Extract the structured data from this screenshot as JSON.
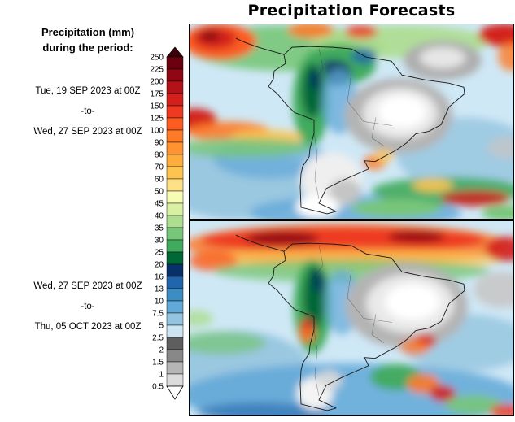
{
  "title": "Precipitation Forecasts",
  "sidebar": {
    "legend_title_line1": "Precipitation (mm)",
    "legend_title_line2": "during the period:",
    "period1": {
      "from": "Tue, 19 SEP 2023 at 00Z",
      "separator": "-to-",
      "to": "Wed, 27 SEP 2023 at 00Z"
    },
    "period2": {
      "from": "Wed, 27 SEP 2023 at 00Z",
      "separator": "-to-",
      "to": "Thu, 05 OCT 2023 at 00Z"
    }
  },
  "colorbar": {
    "boundaries": [
      "250",
      "225",
      "200",
      "175",
      "150",
      "125",
      "100",
      "90",
      "80",
      "70",
      "60",
      "50",
      "45",
      "40",
      "35",
      "30",
      "25",
      "20",
      "16",
      "13",
      "10",
      "7.5",
      "5",
      "2.5",
      "2",
      "1.5",
      "1",
      "0.5"
    ],
    "segment_colors": [
      "#6b0010",
      "#8f0712",
      "#b21218",
      "#d3201d",
      "#ee3a20",
      "#fa5c22",
      "#fd7a28",
      "#fe9330",
      "#feac3c",
      "#fec44f",
      "#fee187",
      "#f7fcb4",
      "#d9f0a3",
      "#addd8e",
      "#78c679",
      "#41ab5d",
      "#006837",
      "#08306b",
      "#2166ac",
      "#3c8dc4",
      "#62a8d8",
      "#94c4df",
      "#cce5f2",
      "#5e5e5e",
      "#888888",
      "#b5b5b5",
      "#dcdcdc"
    ],
    "top_arrow_color": "#3a000a",
    "bottom_arrow_color": "#ffffff"
  }
}
